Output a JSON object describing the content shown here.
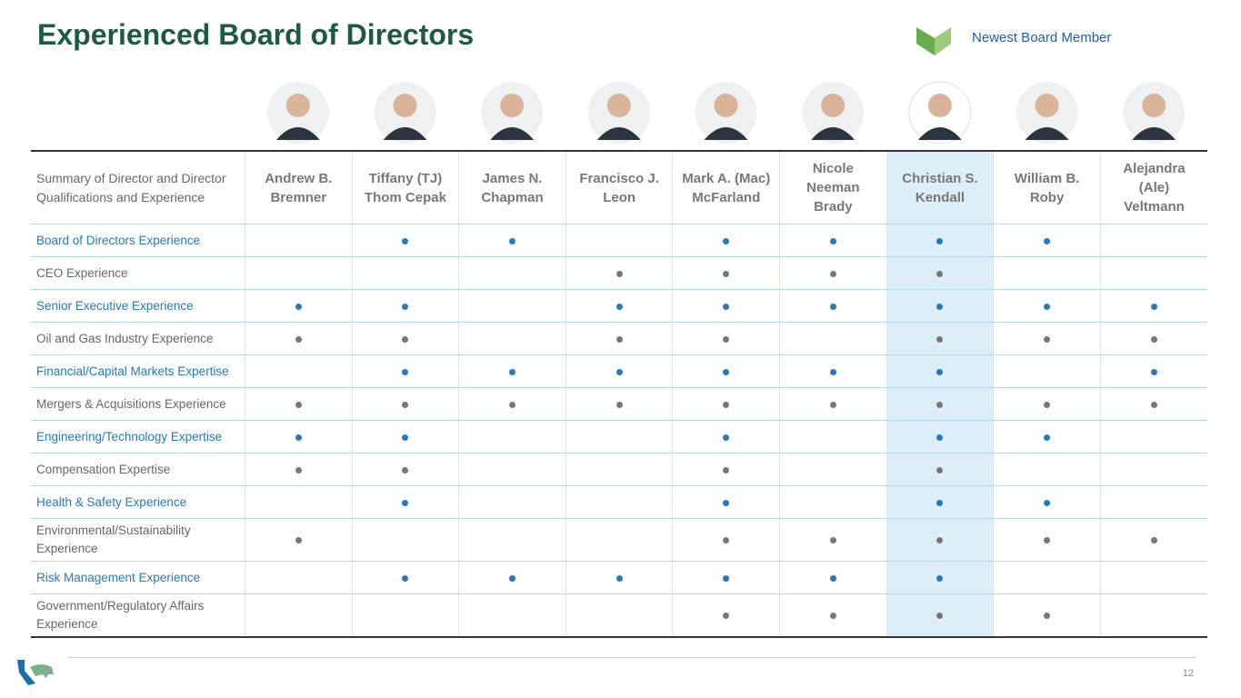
{
  "header": {
    "title": "Experienced Board of Directors",
    "legend": "Newest Board Member"
  },
  "table": {
    "corner": "Summary of Director and Director Qualifications and Experience",
    "directors": [
      {
        "first": "Andrew B.",
        "last": "Bremner",
        "newest": false
      },
      {
        "first": "Tiffany (TJ)",
        "last": "Thom Cepak",
        "newest": false
      },
      {
        "first": "James N.",
        "last": "Chapman",
        "newest": false
      },
      {
        "first": "Francisco J.",
        "last": "Leon",
        "newest": false
      },
      {
        "first": "Mark A. (Mac)",
        "last": "McFarland",
        "newest": false
      },
      {
        "first": "Nicole Neeman",
        "last": "Brady",
        "newest": false
      },
      {
        "first": "Christian S.",
        "last": "Kendall",
        "newest": true
      },
      {
        "first": "William B.",
        "last": "Roby",
        "newest": false
      },
      {
        "first": "Alejandra (Ale)",
        "last": "Veltmann",
        "newest": false
      }
    ],
    "rows": [
      {
        "label": "Board of Directors Experience",
        "marks": [
          false,
          true,
          true,
          false,
          true,
          true,
          true,
          true,
          false
        ]
      },
      {
        "label": "CEO Experience",
        "marks": [
          false,
          false,
          false,
          true,
          true,
          true,
          true,
          false,
          false
        ]
      },
      {
        "label": "Senior Executive Experience",
        "marks": [
          true,
          true,
          false,
          true,
          true,
          true,
          true,
          true,
          true
        ]
      },
      {
        "label": "Oil and Gas Industry Experience",
        "marks": [
          true,
          true,
          false,
          true,
          true,
          false,
          true,
          true,
          true
        ]
      },
      {
        "label": "Financial/Capital Markets Expertise",
        "marks": [
          false,
          true,
          true,
          true,
          true,
          true,
          true,
          false,
          true
        ]
      },
      {
        "label": "Mergers & Acquisitions Experience",
        "marks": [
          true,
          true,
          true,
          true,
          true,
          true,
          true,
          true,
          true
        ]
      },
      {
        "label": "Engineering/Technology Expertise",
        "marks": [
          true,
          true,
          false,
          false,
          true,
          false,
          true,
          true,
          false
        ]
      },
      {
        "label": "Compensation Expertise",
        "marks": [
          true,
          true,
          false,
          false,
          true,
          false,
          true,
          false,
          false
        ]
      },
      {
        "label": "Health & Safety Experience",
        "marks": [
          false,
          true,
          false,
          false,
          true,
          false,
          true,
          true,
          false
        ]
      },
      {
        "label": "Environmental/Sustainability Experience",
        "marks": [
          true,
          false,
          false,
          false,
          true,
          true,
          true,
          true,
          true
        ]
      },
      {
        "label": "Risk Management Experience",
        "marks": [
          false,
          true,
          true,
          true,
          true,
          true,
          true,
          false,
          false
        ]
      },
      {
        "label": "Government/Regulatory Affairs Experience",
        "marks": [
          false,
          false,
          false,
          false,
          true,
          true,
          true,
          true,
          false
        ]
      }
    ]
  },
  "footer": {
    "page": "12"
  }
}
